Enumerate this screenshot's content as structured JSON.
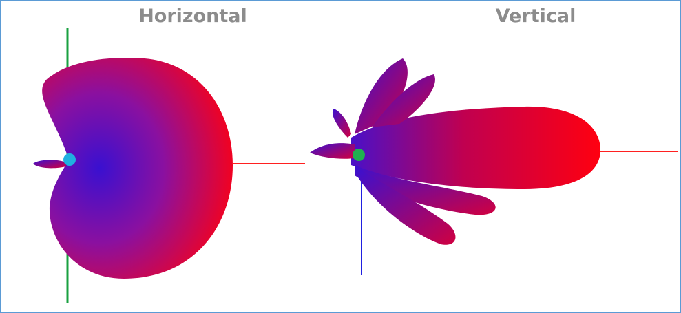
{
  "panels": [
    {
      "title": "Horizontal"
    },
    {
      "title": "Vertical"
    }
  ]
}
